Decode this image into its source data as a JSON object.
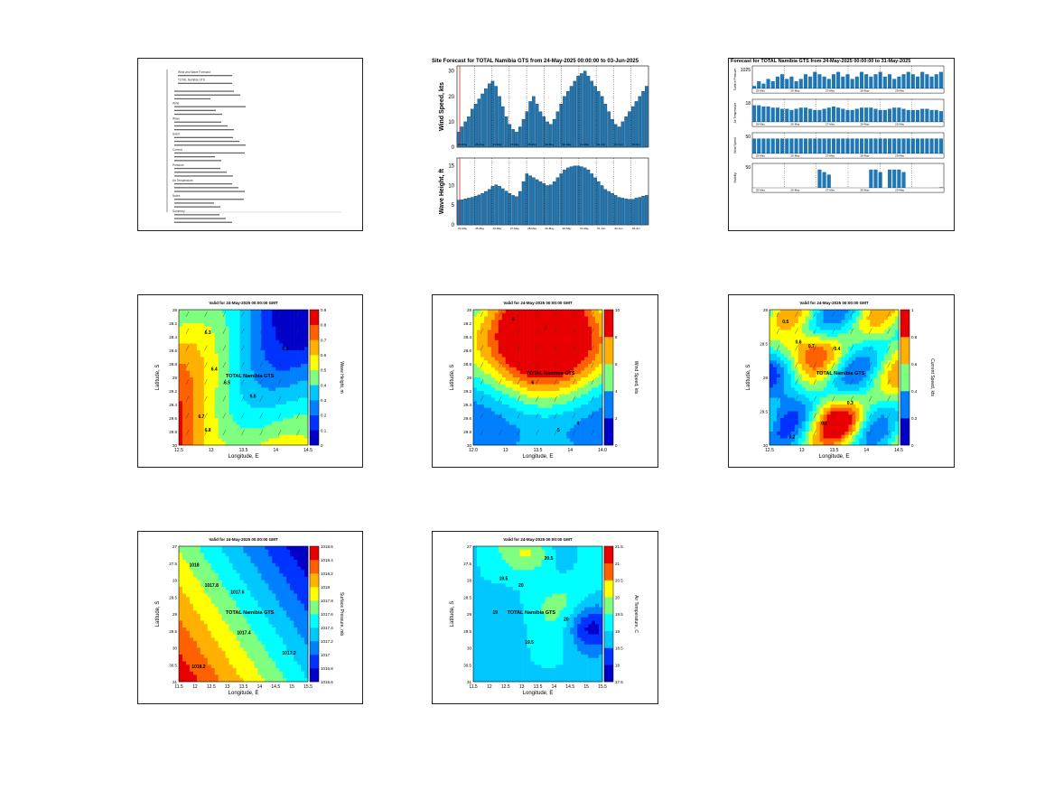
{
  "colors": {
    "bar": "#1f77b4",
    "bar_edge": "#0b2740",
    "jet": [
      "#0000c8",
      "#0033ff",
      "#0080ff",
      "#00c8ff",
      "#00ffff",
      "#7fff7f",
      "#ffff00",
      "#ffb000",
      "#ff6000",
      "#e80000"
    ],
    "now_line": "#d62728"
  },
  "report": {
    "lines": [
      "Wind and Wave Forecast",
      "TOTAL Namibia GTS",
      "",
      "Wind",
      "Wave",
      "Swell",
      "Current",
      "Pressure",
      "Air Temperature",
      "Notes",
      "Summary"
    ]
  },
  "timeseries": {
    "title": "Site Forecast for TOTAL Namibia GTS from 24-May-2025 00:00:00 to 03-Jun-2025",
    "wind": {
      "ylabel": "Wind Speed, kts",
      "yticks": [
        "0",
        "10",
        "20",
        "30"
      ],
      "ylim": [
        0,
        32
      ],
      "values": [
        6,
        8,
        10,
        12,
        15,
        17,
        19,
        21,
        23,
        25,
        26,
        24,
        20,
        16,
        12,
        9,
        7,
        6,
        8,
        11,
        14,
        18,
        20,
        17,
        14,
        12,
        10,
        9,
        11,
        14,
        17,
        20,
        22,
        24,
        26,
        28,
        29,
        30,
        28,
        26,
        24,
        22,
        20,
        17,
        14,
        11,
        9,
        8,
        10,
        12,
        14,
        16,
        18,
        20,
        22,
        24
      ]
    },
    "wave": {
      "ylabel": "Wave Height, ft",
      "yticks": [
        "0",
        "5",
        "10",
        "15"
      ],
      "ylim": [
        0,
        17
      ],
      "values": [
        6.3,
        6.4,
        6.6,
        6.8,
        7,
        7.3,
        7.6,
        8,
        8.5,
        9,
        9.8,
        10.2,
        9.8,
        9.2,
        8.6,
        8,
        7.5,
        7.2,
        8.5,
        11,
        13,
        12.5,
        12,
        11.5,
        11,
        10.5,
        10,
        10.2,
        11,
        12,
        13,
        14,
        14.5,
        14.8,
        15,
        15,
        14.8,
        14.5,
        14,
        13,
        12,
        11,
        10,
        9,
        8.5,
        8,
        7.5,
        7,
        6.8,
        6.6,
        6.5,
        6.5,
        6.8,
        7,
        7.3,
        7.5
      ]
    },
    "date_labels": [
      "24-May",
      "25-May",
      "26-May",
      "27-May",
      "28-May",
      "29-May",
      "30-May",
      "31-May",
      "01-Jun",
      "02-Jun",
      "03-Jun"
    ]
  },
  "multipanel": {
    "title": "Forecast for TOTAL Namibia GTS from 24-May-2025 00:00:00 to 31-May-2025",
    "tick_labels": [
      "25-May",
      "26-May",
      "27-May",
      "28-May",
      "29-May"
    ],
    "rows": [
      {
        "ylabel": "Surface Pressure",
        "ytick": "1025",
        "values": [
          3,
          5,
          4,
          6,
          5,
          7,
          8,
          6,
          7,
          5,
          6,
          8,
          7,
          9,
          8,
          7,
          6,
          8,
          9,
          7,
          8,
          6,
          7,
          9,
          8,
          7,
          8,
          9,
          7,
          8,
          6,
          7,
          8,
          9,
          8,
          7,
          9,
          8,
          7,
          8,
          9
        ]
      },
      {
        "ylabel": "Air Temperature",
        "ytick": "18",
        "values": [
          9,
          9,
          8.5,
          8.5,
          8,
          8,
          7.5,
          7.5,
          7,
          7.5,
          8,
          8,
          7.5,
          7,
          7,
          7.5,
          8,
          8.5,
          8,
          7.5,
          7,
          7,
          7.5,
          8,
          8,
          8,
          7.5,
          7,
          7,
          7.5,
          8,
          8,
          7.5,
          7,
          7,
          7,
          7.5,
          7.5,
          7,
          7,
          6.5
        ]
      },
      {
        "ylabel": "Wind Speed",
        "ytick": "50",
        "values": [
          9,
          9,
          9,
          9,
          9,
          9,
          9,
          9,
          9,
          9,
          9,
          9,
          9,
          9,
          9,
          9,
          9,
          9,
          9,
          9,
          9,
          9,
          9,
          9,
          9,
          9,
          9,
          9,
          9,
          9,
          9,
          9,
          9,
          9,
          9,
          9,
          9,
          9,
          9,
          9,
          9
        ]
      },
      {
        "ylabel": "Visibility",
        "ytick": "50",
        "values": [
          0,
          0,
          0,
          0,
          0,
          0,
          0,
          0,
          0,
          0,
          0,
          0,
          0,
          0,
          9,
          8,
          7,
          0,
          0,
          0,
          0,
          0,
          0,
          0,
          0,
          9,
          9,
          8,
          0,
          9,
          9,
          9,
          8,
          0,
          0,
          0,
          0,
          1,
          0,
          1,
          2
        ]
      }
    ]
  },
  "maps": [
    {
      "title": "Valid for 24-May-2025 00:00:00 GMT",
      "xlabel": "Longitude, E",
      "ylabel": "Latitude, S",
      "site_label": "TOTAL Namibia GTS",
      "cbar_label": "Wave Height, m",
      "cbar_ticks": [
        "0",
        "0.1",
        "0.2",
        "0.3",
        "0.4",
        "0.5",
        "0.6",
        "0.7",
        "0.8",
        "0.9"
      ],
      "xticks": [
        "12.5",
        "13",
        "13.5",
        "14",
        "14.5"
      ],
      "yticks": [
        "28",
        "28.2",
        "28.4",
        "28.6",
        "28.8",
        "29",
        "29.2",
        "29.4",
        "29.6",
        "29.8",
        "30"
      ],
      "contour_labels": [
        "6.3",
        "6.4",
        "6.5",
        "6.6",
        "6.7",
        "6.8",
        "6.2"
      ]
    },
    {
      "title": "Valid for 24-May-2025 00:00:00 GMT",
      "xlabel": "Longitude, E",
      "ylabel": "Latitude, S",
      "site_label": "TOTAL Namibia GTS",
      "cbar_label": "Wind Speed, kts",
      "cbar_ticks": [
        "0",
        "2",
        "4",
        "6",
        "8",
        "10"
      ],
      "xticks": [
        "12.0",
        "13",
        "13.5",
        "14",
        "14.0"
      ],
      "yticks": [
        "28",
        "28.2",
        "28.4",
        "28.6",
        "28.8",
        "29",
        "29.2",
        "29.4",
        "29.6",
        "29.8",
        "30"
      ],
      "contour_labels": [
        "8",
        "6",
        "4",
        "7",
        "5"
      ]
    },
    {
      "title": "Valid for 24-May-2025 00:00:00 GMT",
      "xlabel": "Longitude, E",
      "ylabel": "Latitude, S",
      "site_label": "TOTAL Namibia GTS",
      "cbar_label": "Current Speed, kts",
      "cbar_ticks": [
        "0",
        "0.2",
        "0.4",
        "0.6",
        "0.8",
        "1"
      ],
      "xticks": [
        "12.5",
        "13",
        "13.5",
        "14",
        "14.5"
      ],
      "yticks": [
        "28",
        "28.5",
        "29",
        "29.5",
        "30"
      ],
      "contour_labels": [
        "0.5",
        "0.6",
        "0.7",
        "0.4",
        "0.3",
        "0.8",
        "0.2"
      ]
    },
    {
      "title": "Valid for 24-May-2025 00:00:00 GMT",
      "xlabel": "Longitude, E",
      "ylabel": "Latitude, S",
      "site_label": "TOTAL Namibia GTS",
      "cbar_label": "Surface Pressure, mb",
      "cbar_ticks": [
        "1016.6",
        "1016.8",
        "1017",
        "1017.2",
        "1017.4",
        "1017.6",
        "1017.8",
        "1018",
        "1018.2",
        "1018.4",
        "1018.6"
      ],
      "xticks": [
        "11.5",
        "12",
        "12.5",
        "13",
        "13.5",
        "14",
        "14.5",
        "15",
        "15.5"
      ],
      "yticks": [
        "27",
        "27.5",
        "28",
        "28.5",
        "29",
        "29.5",
        "30",
        "30.5",
        "31"
      ],
      "contour_labels": [
        "1018",
        "1017.8",
        "1017.6",
        "1017.4",
        "1017.2",
        "1018.2"
      ]
    },
    {
      "title": "Valid for 24-May-2025 00:00:00 GMT",
      "xlabel": "Longitude, E",
      "ylabel": "Latitude, S",
      "site_label": "TOTAL Namibia GTS",
      "cbar_label": "Air Temperature, C",
      "cbar_ticks": [
        "17.5",
        "18",
        "18.5",
        "19",
        "19.5",
        "20",
        "20.5",
        "21",
        "21.5"
      ],
      "xticks": [
        "11.5",
        "12",
        "12.5",
        "13",
        "13.5",
        "14",
        "14.5",
        "15",
        "15.5"
      ],
      "yticks": [
        "27",
        "27.5",
        "28",
        "28.5",
        "29",
        "29.5",
        "30",
        "30.5",
        "31"
      ],
      "contour_labels": [
        "19.5",
        "20",
        "20.5",
        "19",
        "19.5",
        "20"
      ]
    }
  ]
}
